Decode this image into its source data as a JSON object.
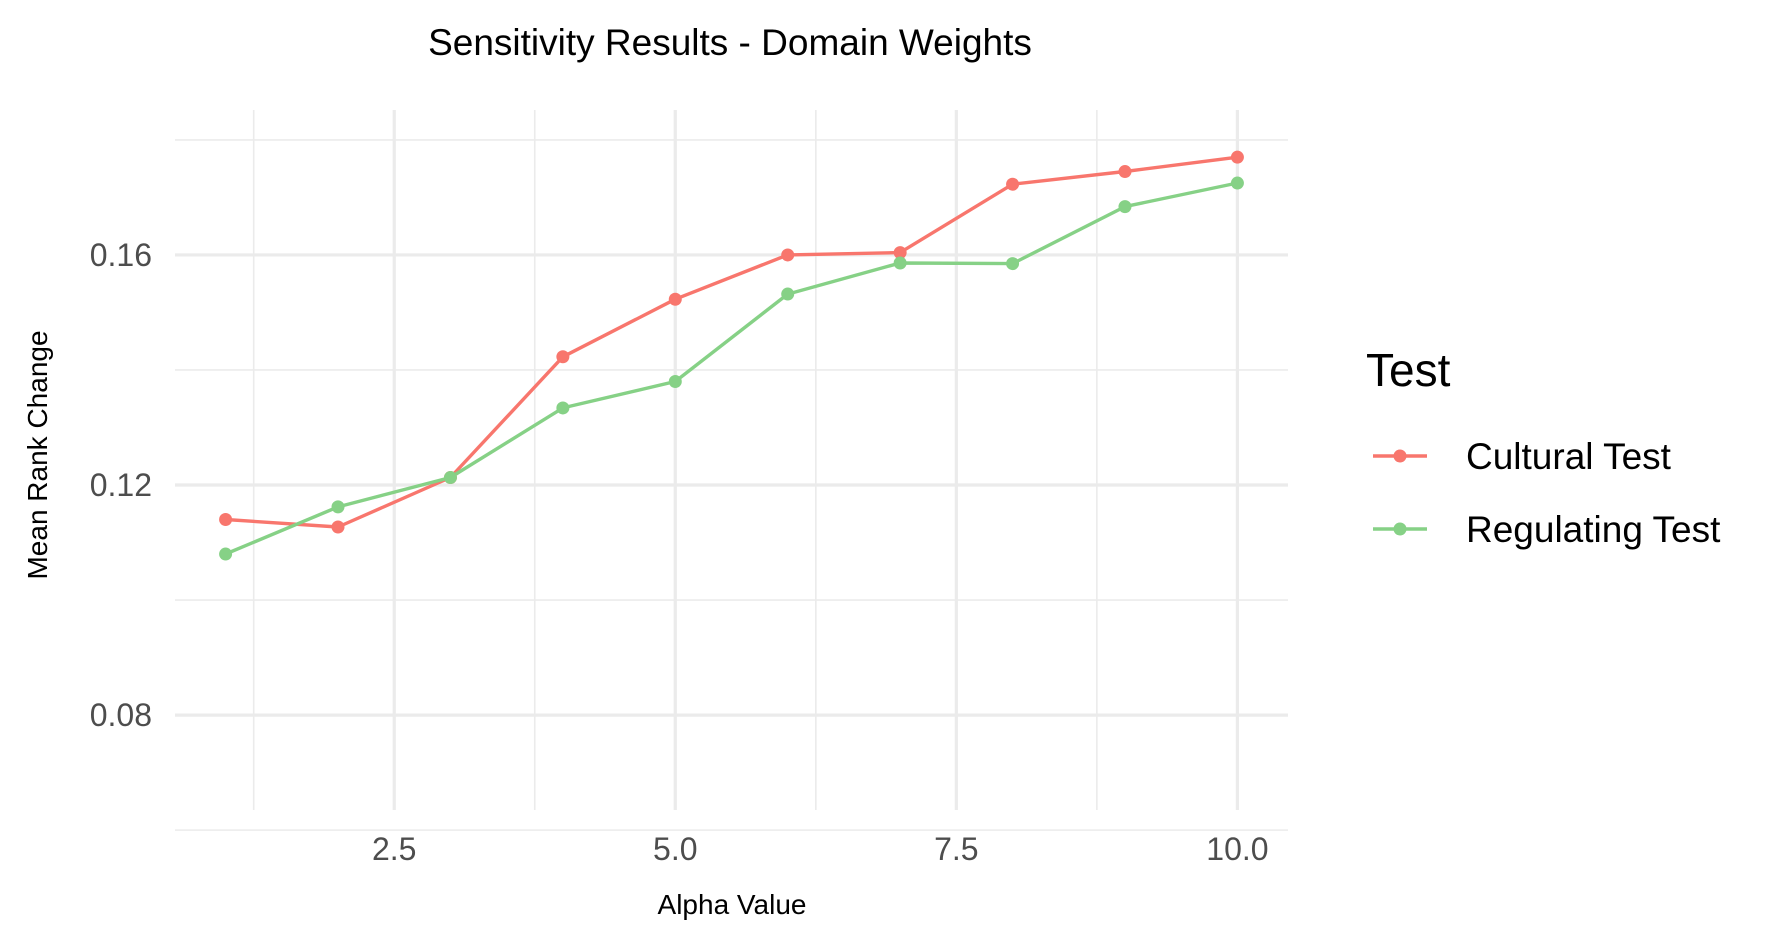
{
  "chart_data": {
    "type": "line",
    "title": "Sensitivity Results - Domain Weights",
    "xlabel": "Alpha Value",
    "ylabel": "Mean Rank Change",
    "xlim": [
      0.55,
      10.45
    ],
    "ylim": [
      0.0635,
      0.1852
    ],
    "x_ticks": [
      2.5,
      5.0,
      7.5,
      10.0
    ],
    "x_tick_labels": [
      "2.5",
      "5.0",
      "7.5",
      "10.0"
    ],
    "x_minor_ticks": [
      1.25,
      3.75,
      6.25,
      8.75
    ],
    "y_ticks": [
      0.08,
      0.12,
      0.16
    ],
    "y_tick_labels": [
      "0.08",
      "0.12",
      "0.16"
    ],
    "y_minor_ticks": [
      0.06,
      0.1,
      0.14,
      0.18
    ],
    "grid": true,
    "legend": {
      "title": "Test",
      "placement": "right"
    },
    "x": [
      1,
      2,
      3,
      4,
      5,
      6,
      7,
      8,
      9,
      10
    ],
    "series": [
      {
        "name": "Cultural Test",
        "color": "#F8766D",
        "values": [
          0.114,
          0.1127,
          0.1213,
          0.1423,
          0.1523,
          0.16,
          0.1604,
          0.1723,
          0.1745,
          0.177
        ]
      },
      {
        "name": "Regulating Test",
        "color": "#86D186",
        "values": [
          0.108,
          0.1162,
          0.1213,
          0.1334,
          0.138,
          0.1532,
          0.1586,
          0.1585,
          0.1684,
          0.1725
        ]
      }
    ]
  }
}
